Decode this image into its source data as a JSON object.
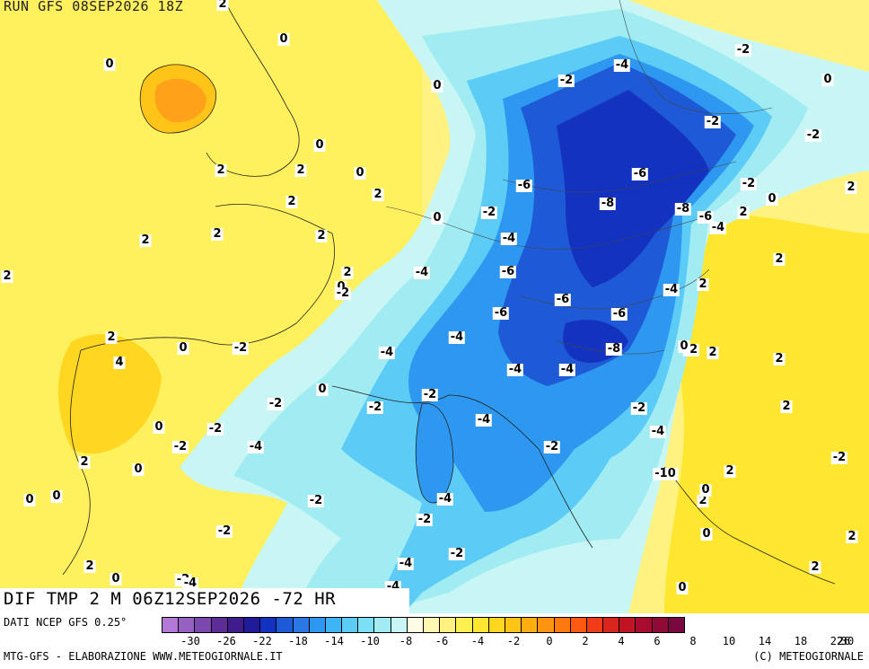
{
  "header": {
    "run_title": "RUN GFS 08SEP2026 18Z"
  },
  "map": {
    "title": "DIF TMP 2 M 06Z12SEP2026 -72 HR",
    "labels": [
      "0",
      "0",
      "0",
      "0",
      "0",
      "0",
      "0",
      "0",
      "0",
      "0",
      "0",
      "0",
      "0",
      "0",
      "0",
      "0",
      "0",
      "2",
      "2",
      "2",
      "2",
      "2",
      "2",
      "2",
      "2",
      "2",
      "2",
      "2",
      "2",
      "2",
      "2",
      "2",
      "2",
      "2",
      "2",
      "2",
      "2",
      "2",
      "2",
      "2",
      "4",
      "-2",
      "-2",
      "-2",
      "-2",
      "-2",
      "-2",
      "-2",
      "-2",
      "-2",
      "-2",
      "-2",
      "-2",
      "-2",
      "-2",
      "-2",
      "-2",
      "-2",
      "-2",
      "-2",
      "-2",
      "-2",
      "-2",
      "-4",
      "-4",
      "-4",
      "-4",
      "-4",
      "-4",
      "-4",
      "-4",
      "-4",
      "-4",
      "-4",
      "-4",
      "-4",
      "-4",
      "-4",
      "-4",
      "-6",
      "-6",
      "-6",
      "-6",
      "-6",
      "-6",
      "-6",
      "-8",
      "-8",
      "-8",
      "-10",
      "0",
      "0",
      "0",
      "2",
      "2"
    ]
  },
  "legend": {
    "source": "DATI NCEP GFS 0.25°",
    "colors": [
      "#b27ad6",
      "#9660c2",
      "#7a48ae",
      "#5e2c96",
      "#3e1c8c",
      "#1e1a9a",
      "#1432c0",
      "#1e5ad6",
      "#2a78e6",
      "#2e98f0",
      "#3cb4f6",
      "#5cccf6",
      "#7ae0f4",
      "#a0ecf2",
      "#c8f6f4",
      "#fefce2",
      "#fff7b2",
      "#fff280",
      "#fff050",
      "#ffe630",
      "#ffd620",
      "#ffc418",
      "#ffae12",
      "#ff9410",
      "#ff7810",
      "#ff5a12",
      "#f03c18",
      "#d8261e",
      "#c01424",
      "#a80c2e",
      "#900a38",
      "#7a0840"
    ],
    "ticks": [
      "-30",
      "-26",
      "-22",
      "-18",
      "-14",
      "-10",
      "-8",
      "-6",
      "-4",
      "-2",
      "0",
      "2",
      "4",
      "6",
      "8",
      "10",
      "14",
      "18",
      "22",
      "26",
      "30"
    ]
  },
  "footer": {
    "credits_left": "MTG-GFS - ELABORAZIONE WWW.METEOGIORNALE.IT",
    "credits_right": "(C) METEOGIORNALE"
  }
}
